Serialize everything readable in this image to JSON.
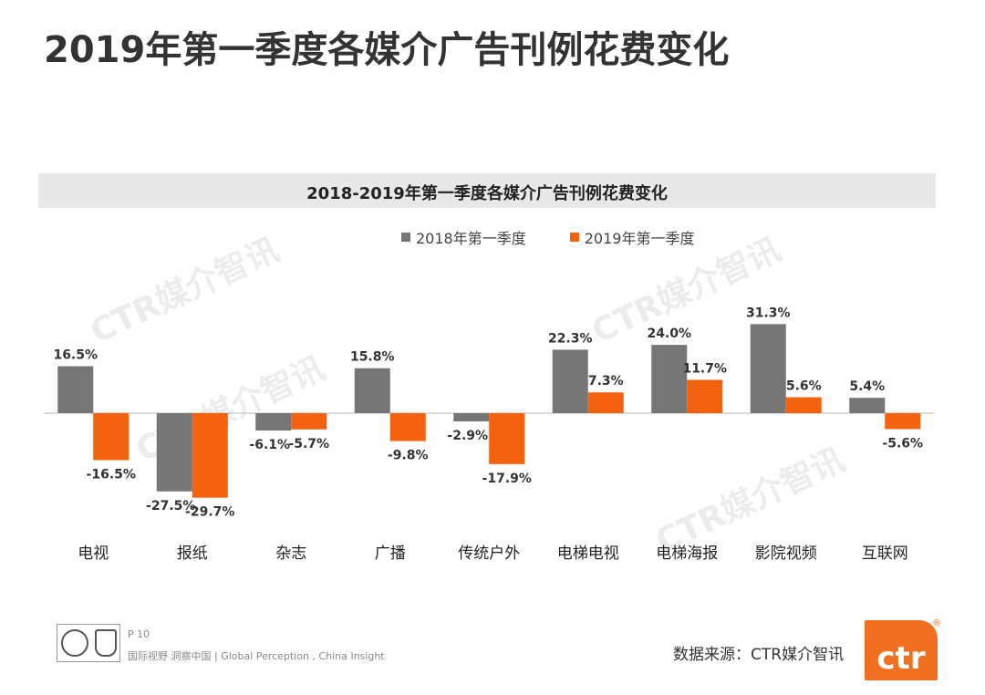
{
  "page": {
    "title": "2019年第一季度各媒介广告刊例花费变化",
    "watermark": "CTR媒介智讯"
  },
  "chart_data": {
    "type": "bar",
    "title": "2018-2019年第一季度各媒介广告刊例花费变化",
    "categories": [
      "电视",
      "报纸",
      "杂志",
      "广播",
      "传统户外",
      "电梯电视",
      "电梯海报",
      "影院视频",
      "互联网"
    ],
    "series": [
      {
        "name": "2018年第一季度",
        "color": "#767676",
        "values": [
          16.5,
          -27.5,
          -6.1,
          15.8,
          -2.9,
          22.3,
          24.0,
          31.3,
          5.4
        ]
      },
      {
        "name": "2019年第一季度",
        "color": "#f2620f",
        "values": [
          -16.5,
          -29.7,
          -5.7,
          -9.8,
          -17.9,
          7.3,
          11.7,
          5.6,
          -5.6
        ]
      }
    ],
    "value_suffix": "%",
    "ylim": [
      -35,
      35
    ],
    "legend_position": "top-center",
    "grid": false
  },
  "footer": {
    "page_number": "P 10",
    "slogan": "国际视野  洞察中国 |  Global Perception , China Insight",
    "source": "数据来源：CTR媒介智讯",
    "logo_text": "ctr",
    "logo_mark": "®"
  }
}
